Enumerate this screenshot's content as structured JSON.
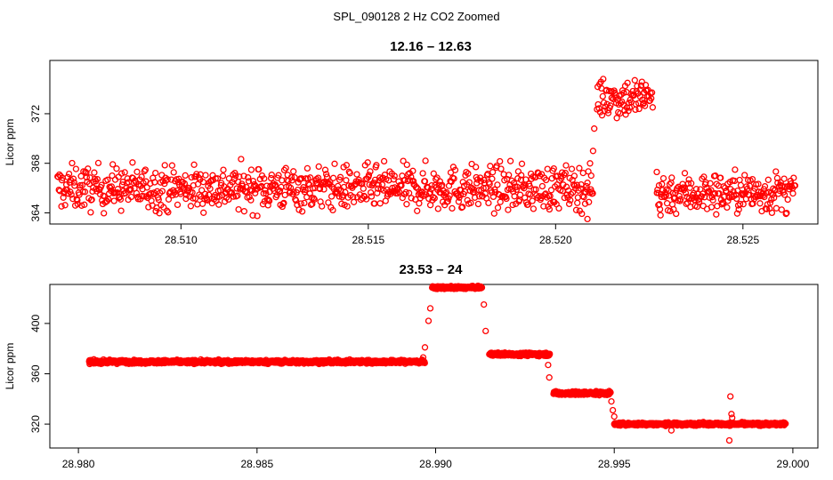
{
  "figure": {
    "title": "SPL_090128  2 Hz CO2 Zoomed"
  },
  "colors": {
    "points": "#ff0000",
    "axes": "#000000",
    "background": "#ffffff"
  },
  "chart_data": [
    {
      "type": "scatter",
      "title": "12.16 – 12.63",
      "xlabel": "",
      "ylabel": "Licor ppm",
      "xlim": [
        28.5065,
        28.527
      ],
      "ylim": [
        363.1,
        376.3
      ],
      "xticks": [
        "28.510",
        "28.515",
        "28.520",
        "28.525"
      ],
      "yticks": [
        "364",
        "368",
        "372"
      ],
      "grid": false,
      "marker": "open-circle",
      "segments": [
        {
          "x_start": 28.5067,
          "x_end": 28.521,
          "level": 366.0,
          "noise": 1.6
        },
        {
          "x_start": 28.5211,
          "x_end": 28.5226,
          "level": 373.3,
          "noise": 1.5
        },
        {
          "x_start": 28.5227,
          "x_end": 28.5264,
          "level": 365.6,
          "noise": 1.5
        }
      ],
      "transitions": [
        {
          "x": 28.52085,
          "y": 363.5
        },
        {
          "x": 28.52095,
          "y": 367.0
        },
        {
          "x": 28.521,
          "y": 369.0
        },
        {
          "x": 28.52103,
          "y": 370.8
        },
        {
          "x": 28.5227,
          "y": 367.3
        },
        {
          "x": 28.52275,
          "y": 365.6
        },
        {
          "x": 28.5228,
          "y": 363.8
        }
      ]
    },
    {
      "type": "scatter",
      "title": "23.53 – 24",
      "xlabel": "",
      "ylabel": "Licor ppm",
      "xlim": [
        28.9792,
        29.0007
      ],
      "ylim": [
        301,
        431
      ],
      "xticks": [
        "28.980",
        "28.985",
        "28.990",
        "28.995",
        "29.000"
      ],
      "yticks": [
        "320",
        "360",
        "400"
      ],
      "grid": false,
      "marker": "open-circle",
      "segments": [
        {
          "x_start": 28.9803,
          "x_end": 28.9897,
          "level": 369.5,
          "noise": 1.2
        },
        {
          "x_start": 28.9899,
          "x_end": 28.9913,
          "level": 428.5,
          "noise": 0.9
        },
        {
          "x_start": 28.9915,
          "x_end": 28.9932,
          "level": 375.5,
          "noise": 1.1
        },
        {
          "x_start": 28.9933,
          "x_end": 28.9949,
          "level": 344.5,
          "noise": 1.3
        },
        {
          "x_start": 28.995,
          "x_end": 28.9998,
          "level": 320.0,
          "noise": 1.0
        }
      ],
      "transitions": [
        {
          "x": 28.98965,
          "y": 373.0
        },
        {
          "x": 28.9897,
          "y": 381.0
        },
        {
          "x": 28.9898,
          "y": 402.0
        },
        {
          "x": 28.98985,
          "y": 412.0
        },
        {
          "x": 28.99135,
          "y": 415.0
        },
        {
          "x": 28.9914,
          "y": 394.0
        },
        {
          "x": 28.99315,
          "y": 367.0
        },
        {
          "x": 28.99318,
          "y": 357.0
        },
        {
          "x": 28.99492,
          "y": 338.0
        },
        {
          "x": 28.99496,
          "y": 331.0
        },
        {
          "x": 28.995,
          "y": 326.0
        },
        {
          "x": 28.99825,
          "y": 342.0
        },
        {
          "x": 28.99828,
          "y": 328.0
        },
        {
          "x": 28.9983,
          "y": 325.0
        },
        {
          "x": 28.99822,
          "y": 307.0
        },
        {
          "x": 28.9966,
          "y": 315.0
        }
      ]
    }
  ]
}
